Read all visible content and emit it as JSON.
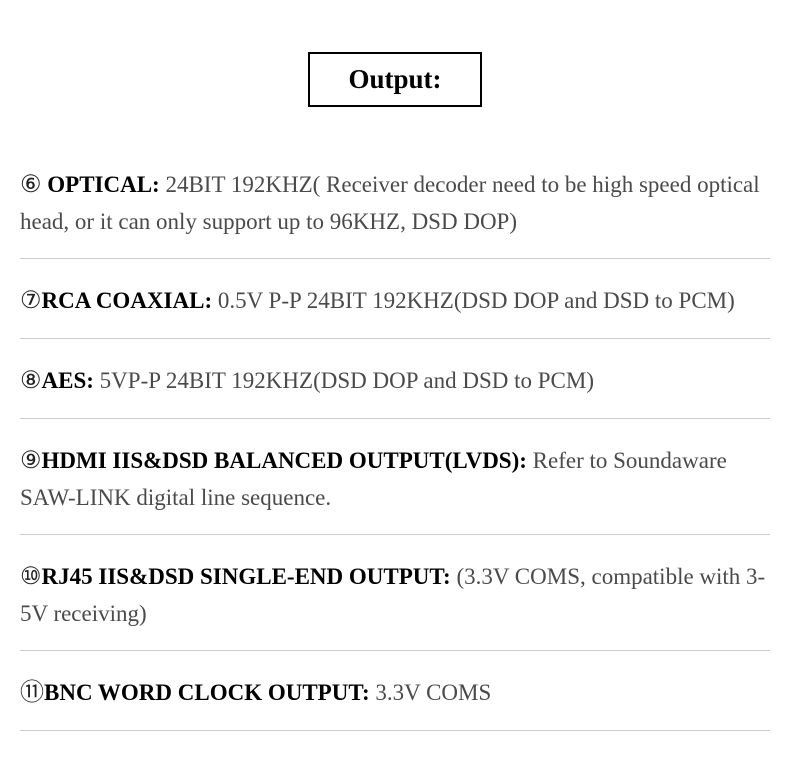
{
  "title": "Output:",
  "items": [
    {
      "number": "⑥",
      "label": " OPTICAL:",
      "text": " 24BIT 192KHZ( Receiver decoder need to be high speed optical head, or it can only support up to 96KHZ, DSD DOP)"
    },
    {
      "number": "⑦",
      "label": "RCA COAXIAL:",
      "text": " 0.5V P-P 24BIT 192KHZ(DSD DOP and  DSD to PCM)"
    },
    {
      "number": "⑧",
      "label": "AES:",
      "text": "  5VP-P 24BIT 192KHZ(DSD DOP and DSD to PCM)"
    },
    {
      "number": "⑨",
      "label": "HDMI IIS&DSD BALANCED OUTPUT(LVDS):",
      "text": " Refer to Soundaware SAW-LINK digital line sequence."
    },
    {
      "number": "⑩",
      "label": "RJ45 IIS&DSD SINGLE-END OUTPUT:",
      "text": " (3.3V COMS, compatible with 3-5V receiving)"
    },
    {
      "number": "⑪",
      "label": "BNC WORD CLOCK OUTPUT:",
      "text": " 3.3V COMS"
    }
  ],
  "colors": {
    "background": "#ffffff",
    "text_primary": "#000000",
    "text_secondary": "#4a4a4a",
    "divider": "#cccccc",
    "border": "#000000"
  },
  "typography": {
    "title_fontsize": 27,
    "body_fontsize": 23,
    "font_family": "Georgia, Times New Roman, serif"
  }
}
